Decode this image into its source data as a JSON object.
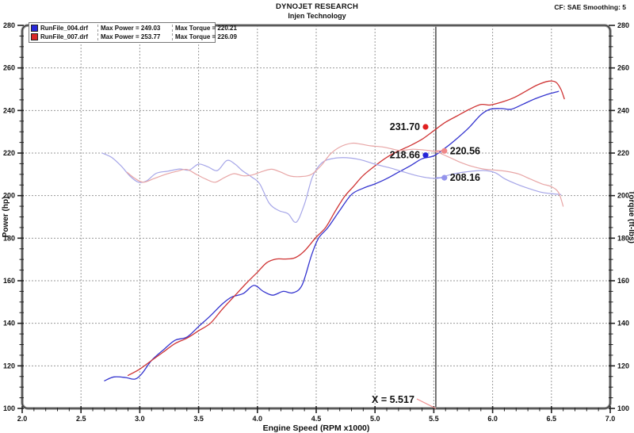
{
  "header": {
    "title": "DYNOJET RESEARCH",
    "subtitle": "Injen Technology",
    "correction": "CF: SAE  Smoothing: 5"
  },
  "legend": {
    "entries": [
      {
        "file": "RunFile_004.drf",
        "max_power": "Max Power = 249.03",
        "max_torque": "Max Torque = 220.21",
        "color": "#2828d8"
      },
      {
        "file": "RunFile_007.drf",
        "max_power": "Max Power = 253.77",
        "max_torque": "Max Torque = 226.09",
        "color": "#d82828"
      }
    ]
  },
  "chart_data": {
    "type": "line",
    "xlabel": "Engine Speed (RPM x1000)",
    "ylabel_left": "Power (hp)",
    "ylabel_right": "Torque (ft-lbs)",
    "xlim": [
      2.0,
      7.0
    ],
    "ylim": [
      100,
      280
    ],
    "x_ticks": [
      {
        "v": 2.0,
        "label": "2.0"
      },
      {
        "v": 2.5,
        "label": "2.5"
      },
      {
        "v": 3.0,
        "label": "3.0"
      },
      {
        "v": 3.5,
        "label": "3.5"
      },
      {
        "v": 4.0,
        "label": "4.0"
      },
      {
        "v": 4.5,
        "label": "4.5"
      },
      {
        "v": 5.0,
        "label": "5.0"
      },
      {
        "v": 5.5,
        "label": "5.5"
      },
      {
        "v": 6.0,
        "label": "6.0"
      },
      {
        "v": 6.5,
        "label": "6.5"
      },
      {
        "v": 7.0,
        "label": "7.0"
      }
    ],
    "y_ticks": [
      {
        "v": 100,
        "label": "100"
      },
      {
        "v": 120,
        "label": "120"
      },
      {
        "v": 140,
        "label": "140"
      },
      {
        "v": 160,
        "label": "160"
      },
      {
        "v": 180,
        "label": "180"
      },
      {
        "v": 200,
        "label": "200"
      },
      {
        "v": 220,
        "label": "220"
      },
      {
        "v": 240,
        "label": "240"
      },
      {
        "v": 260,
        "label": "260"
      },
      {
        "v": 280,
        "label": "280"
      }
    ],
    "x_minor_step": 0.1,
    "y_minor_step": 5,
    "grid_color": "#9a9a9a",
    "cursor": {
      "x": 5.517,
      "label": "X = 5.517",
      "line_color": "#555555",
      "leader_color": "#f09090"
    },
    "series": [
      {
        "id": "run004-power",
        "name": "RunFile_004.drf Power",
        "color": "#3434cf",
        "width": 1.3,
        "points": [
          [
            2.7,
            113.0
          ],
          [
            2.78,
            114.8
          ],
          [
            2.88,
            114.5
          ],
          [
            2.96,
            113.8
          ],
          [
            3.02,
            116.5
          ],
          [
            3.1,
            122.5
          ],
          [
            3.2,
            127.5
          ],
          [
            3.3,
            132.0
          ],
          [
            3.4,
            133.5
          ],
          [
            3.5,
            138.5
          ],
          [
            3.6,
            143.5
          ],
          [
            3.7,
            149.0
          ],
          [
            3.78,
            152.3
          ],
          [
            3.88,
            154.0
          ],
          [
            3.97,
            157.8
          ],
          [
            4.05,
            155.0
          ],
          [
            4.13,
            153.2
          ],
          [
            4.22,
            155.0
          ],
          [
            4.3,
            154.3
          ],
          [
            4.38,
            158.0
          ],
          [
            4.46,
            172.0
          ],
          [
            4.52,
            180.0
          ],
          [
            4.6,
            185.0
          ],
          [
            4.7,
            193.0
          ],
          [
            4.8,
            200.5
          ],
          [
            4.9,
            203.5
          ],
          [
            5.0,
            205.5
          ],
          [
            5.1,
            208.0
          ],
          [
            5.2,
            211.0
          ],
          [
            5.3,
            214.0
          ],
          [
            5.4,
            217.3
          ],
          [
            5.5,
            218.7
          ],
          [
            5.6,
            222.5
          ],
          [
            5.7,
            227.0
          ],
          [
            5.8,
            232.0
          ],
          [
            5.9,
            238.0
          ],
          [
            5.98,
            240.6
          ],
          [
            6.08,
            240.9
          ],
          [
            6.16,
            240.6
          ],
          [
            6.26,
            243.0
          ],
          [
            6.36,
            245.5
          ],
          [
            6.46,
            247.5
          ],
          [
            6.56,
            249.0
          ]
        ]
      },
      {
        "id": "run007-power",
        "name": "RunFile_007.drf Power",
        "color": "#cf3434",
        "width": 1.3,
        "points": [
          [
            2.9,
            115.5
          ],
          [
            3.0,
            118.5
          ],
          [
            3.1,
            122.5
          ],
          [
            3.2,
            126.5
          ],
          [
            3.3,
            130.5
          ],
          [
            3.4,
            133.0
          ],
          [
            3.5,
            136.5
          ],
          [
            3.6,
            140.0
          ],
          [
            3.7,
            146.5
          ],
          [
            3.8,
            152.5
          ],
          [
            3.9,
            158.5
          ],
          [
            4.0,
            164.0
          ],
          [
            4.08,
            168.5
          ],
          [
            4.16,
            170.2
          ],
          [
            4.24,
            170.2
          ],
          [
            4.32,
            170.8
          ],
          [
            4.4,
            174.0
          ],
          [
            4.5,
            180.5
          ],
          [
            4.58,
            185.0
          ],
          [
            4.66,
            192.5
          ],
          [
            4.74,
            199.5
          ],
          [
            4.82,
            204.5
          ],
          [
            4.9,
            209.5
          ],
          [
            5.0,
            214.0
          ],
          [
            5.1,
            218.0
          ],
          [
            5.2,
            221.0
          ],
          [
            5.3,
            223.5
          ],
          [
            5.4,
            226.5
          ],
          [
            5.5,
            230.5
          ],
          [
            5.6,
            234.5
          ],
          [
            5.7,
            237.5
          ],
          [
            5.8,
            240.5
          ],
          [
            5.9,
            242.8
          ],
          [
            5.98,
            242.6
          ],
          [
            6.08,
            244.0
          ],
          [
            6.18,
            246.0
          ],
          [
            6.28,
            249.0
          ],
          [
            6.38,
            252.0
          ],
          [
            6.48,
            253.8
          ],
          [
            6.54,
            253.2
          ],
          [
            6.58,
            250.0
          ],
          [
            6.61,
            245.5
          ]
        ]
      },
      {
        "id": "run004-torque",
        "name": "RunFile_004.drf Torque",
        "color": "#a6a6e8",
        "width": 1.2,
        "points": [
          [
            2.68,
            220.0
          ],
          [
            2.76,
            218.0
          ],
          [
            2.84,
            214.0
          ],
          [
            2.92,
            209.0
          ],
          [
            2.99,
            206.3
          ],
          [
            3.06,
            207.0
          ],
          [
            3.14,
            210.5
          ],
          [
            3.24,
            211.5
          ],
          [
            3.34,
            212.5
          ],
          [
            3.42,
            212.0
          ],
          [
            3.5,
            214.8
          ],
          [
            3.58,
            213.5
          ],
          [
            3.66,
            211.8
          ],
          [
            3.74,
            216.5
          ],
          [
            3.81,
            214.8
          ],
          [
            3.87,
            211.8
          ],
          [
            3.95,
            208.8
          ],
          [
            4.02,
            205.5
          ],
          [
            4.1,
            196.5
          ],
          [
            4.18,
            193.0
          ],
          [
            4.26,
            191.5
          ],
          [
            4.33,
            187.5
          ],
          [
            4.4,
            196.0
          ],
          [
            4.47,
            209.0
          ],
          [
            4.55,
            215.5
          ],
          [
            4.65,
            217.5
          ],
          [
            4.76,
            217.8
          ],
          [
            4.88,
            216.8
          ],
          [
            5.0,
            214.8
          ],
          [
            5.13,
            213.0
          ],
          [
            5.25,
            211.0
          ],
          [
            5.36,
            209.3
          ],
          [
            5.46,
            208.3
          ],
          [
            5.54,
            208.2
          ],
          [
            5.65,
            210.0
          ],
          [
            5.78,
            211.2
          ],
          [
            5.92,
            211.8
          ],
          [
            6.02,
            210.8
          ],
          [
            6.1,
            208.0
          ],
          [
            6.2,
            205.5
          ],
          [
            6.3,
            203.5
          ],
          [
            6.42,
            201.5
          ],
          [
            6.52,
            200.8
          ],
          [
            6.58,
            200.5
          ]
        ]
      },
      {
        "id": "run007-torque",
        "name": "RunFile_007.drf Torque",
        "color": "#e8a6a6",
        "width": 1.2,
        "points": [
          [
            2.89,
            211.0
          ],
          [
            2.96,
            208.0
          ],
          [
            3.03,
            206.3
          ],
          [
            3.12,
            208.0
          ],
          [
            3.22,
            210.0
          ],
          [
            3.32,
            211.5
          ],
          [
            3.4,
            212.3
          ],
          [
            3.48,
            210.0
          ],
          [
            3.56,
            207.8
          ],
          [
            3.64,
            206.3
          ],
          [
            3.72,
            208.5
          ],
          [
            3.8,
            210.3
          ],
          [
            3.88,
            209.3
          ],
          [
            3.96,
            209.8
          ],
          [
            4.04,
            211.3
          ],
          [
            4.12,
            212.4
          ],
          [
            4.2,
            211.0
          ],
          [
            4.28,
            209.2
          ],
          [
            4.38,
            209.0
          ],
          [
            4.46,
            210.0
          ],
          [
            4.54,
            214.0
          ],
          [
            4.62,
            219.5
          ],
          [
            4.7,
            222.8
          ],
          [
            4.8,
            224.6
          ],
          [
            4.88,
            224.2
          ],
          [
            4.96,
            223.4
          ],
          [
            5.06,
            222.9
          ],
          [
            5.14,
            222.0
          ],
          [
            5.22,
            221.2
          ],
          [
            5.32,
            221.8
          ],
          [
            5.42,
            221.4
          ],
          [
            5.52,
            220.6
          ],
          [
            5.62,
            218.3
          ],
          [
            5.72,
            215.8
          ],
          [
            5.82,
            213.8
          ],
          [
            5.92,
            212.5
          ],
          [
            6.02,
            212.0
          ],
          [
            6.12,
            211.4
          ],
          [
            6.22,
            210.2
          ],
          [
            6.32,
            207.8
          ],
          [
            6.42,
            205.5
          ],
          [
            6.5,
            204.2
          ],
          [
            6.56,
            201.5
          ],
          [
            6.6,
            195.0
          ]
        ]
      }
    ],
    "annotations": [
      {
        "text": "231.70",
        "x": 5.43,
        "y": 232.3,
        "dot_color": "#e02020",
        "side": "left",
        "leader": false
      },
      {
        "text": "218.66",
        "x": 5.43,
        "y": 219.0,
        "dot_color": "#2424d8",
        "side": "left",
        "leader": false
      },
      {
        "text": "220.56",
        "x": 5.59,
        "y": 221.0,
        "dot_color": "#f08888",
        "side": "right",
        "leader": true
      },
      {
        "text": "208.16",
        "x": 5.59,
        "y": 208.4,
        "dot_color": "#9494ec",
        "side": "right",
        "leader": true
      }
    ]
  }
}
